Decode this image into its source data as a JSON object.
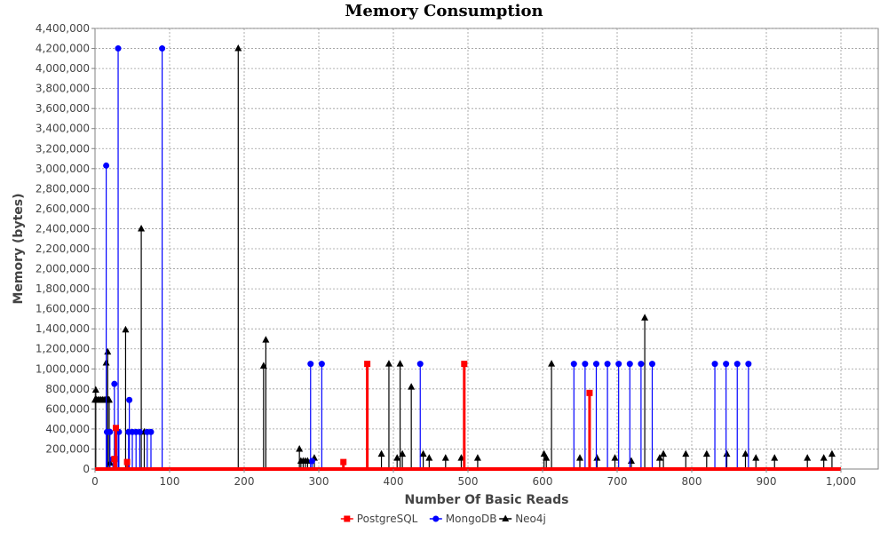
{
  "chart_data": {
    "type": "line",
    "title": "Memory Consumption",
    "xlabel": "Number Of Basic Reads",
    "ylabel": "Memory (bytes)",
    "xlim": [
      0,
      1050
    ],
    "ylim": [
      0,
      4400000
    ],
    "x_ticks": [
      0,
      100,
      200,
      300,
      400,
      500,
      600,
      700,
      800,
      900,
      1000
    ],
    "x_tick_labels": [
      "0",
      "100",
      "200",
      "300",
      "400",
      "500",
      "600",
      "700",
      "800",
      "900",
      "1,000"
    ],
    "y_ticks": [
      0,
      200000,
      400000,
      600000,
      800000,
      1000000,
      1200000,
      1400000,
      1600000,
      1800000,
      2000000,
      2200000,
      2400000,
      2600000,
      2800000,
      3000000,
      3200000,
      3400000,
      3600000,
      3800000,
      4000000,
      4200000,
      4400000
    ],
    "y_tick_labels": [
      "0",
      "200,000",
      "400,000",
      "600,000",
      "800,000",
      "1,000,000",
      "1,200,000",
      "1,400,000",
      "1,600,000",
      "1,800,000",
      "2,000,000",
      "2,200,000",
      "2,400,000",
      "2,600,000",
      "2,800,000",
      "3,000,000",
      "3,200,000",
      "3,400,000",
      "3,600,000",
      "3,800,000",
      "4,000,000",
      "4,200,000",
      "4,400,000"
    ],
    "grid": true,
    "legend_position": "bottom",
    "series": [
      {
        "name": "PostgreSQL",
        "color": "#ff0000",
        "marker": "square",
        "x_range": [
          0,
          1000
        ],
        "baseline": 0,
        "spikes": [
          {
            "x": 26,
            "y": 100000
          },
          {
            "x": 28,
            "y": 410000
          },
          {
            "x": 43,
            "y": 70000
          },
          {
            "x": 333,
            "y": 70000
          },
          {
            "x": 365,
            "y": 1050000
          },
          {
            "x": 495,
            "y": 1050000
          },
          {
            "x": 663,
            "y": 760000
          }
        ]
      },
      {
        "name": "MongoDB",
        "color": "#0000ff",
        "marker": "circle",
        "x_range": [
          0,
          1000
        ],
        "baseline": 0,
        "spikes": [
          {
            "x": 15,
            "y": 3030000
          },
          {
            "x": 16,
            "y": 370000
          },
          {
            "x": 20,
            "y": 370000
          },
          {
            "x": 24,
            "y": 100000
          },
          {
            "x": 26,
            "y": 850000
          },
          {
            "x": 31,
            "y": 4200000
          },
          {
            "x": 32,
            "y": 370000
          },
          {
            "x": 45,
            "y": 370000
          },
          {
            "x": 46,
            "y": 690000
          },
          {
            "x": 50,
            "y": 370000
          },
          {
            "x": 55,
            "y": 370000
          },
          {
            "x": 60,
            "y": 370000
          },
          {
            "x": 70,
            "y": 370000
          },
          {
            "x": 75,
            "y": 370000
          },
          {
            "x": 90,
            "y": 4200000
          },
          {
            "x": 289,
            "y": 1050000
          },
          {
            "x": 291,
            "y": 80000
          },
          {
            "x": 304,
            "y": 1050000
          },
          {
            "x": 436,
            "y": 1050000
          },
          {
            "x": 642,
            "y": 1050000
          },
          {
            "x": 657,
            "y": 1050000
          },
          {
            "x": 672,
            "y": 1050000
          },
          {
            "x": 687,
            "y": 1050000
          },
          {
            "x": 702,
            "y": 1050000
          },
          {
            "x": 717,
            "y": 1050000
          },
          {
            "x": 732,
            "y": 1050000
          },
          {
            "x": 747,
            "y": 1050000
          },
          {
            "x": 831,
            "y": 1050000
          },
          {
            "x": 846,
            "y": 1050000
          },
          {
            "x": 861,
            "y": 1050000
          },
          {
            "x": 876,
            "y": 1050000
          }
        ]
      },
      {
        "name": "Neo4j",
        "color": "#000000",
        "marker": "triangle",
        "x_range": [
          0,
          1000
        ],
        "baseline": 0,
        "plateau": {
          "x_from": 0,
          "x_to": 18,
          "y": 690000
        },
        "spikes": [
          {
            "x": 1,
            "y": 790000
          },
          {
            "x": 15,
            "y": 1060000
          },
          {
            "x": 17,
            "y": 1170000
          },
          {
            "x": 19,
            "y": 690000
          },
          {
            "x": 20,
            "y": 60000
          },
          {
            "x": 41,
            "y": 1390000
          },
          {
            "x": 62,
            "y": 2400000
          },
          {
            "x": 66,
            "y": 370000
          },
          {
            "x": 192,
            "y": 4200000
          },
          {
            "x": 226,
            "y": 1030000
          },
          {
            "x": 229,
            "y": 1290000
          },
          {
            "x": 274,
            "y": 200000
          },
          {
            "x": 276,
            "y": 80000
          },
          {
            "x": 279,
            "y": 80000
          },
          {
            "x": 282,
            "y": 80000
          },
          {
            "x": 285,
            "y": 80000
          },
          {
            "x": 294,
            "y": 110000
          },
          {
            "x": 384,
            "y": 150000
          },
          {
            "x": 394,
            "y": 1050000
          },
          {
            "x": 405,
            "y": 110000
          },
          {
            "x": 409,
            "y": 1050000
          },
          {
            "x": 412,
            "y": 150000
          },
          {
            "x": 424,
            "y": 820000
          },
          {
            "x": 440,
            "y": 150000
          },
          {
            "x": 448,
            "y": 110000
          },
          {
            "x": 470,
            "y": 110000
          },
          {
            "x": 491,
            "y": 110000
          },
          {
            "x": 513,
            "y": 110000
          },
          {
            "x": 602,
            "y": 150000
          },
          {
            "x": 605,
            "y": 110000
          },
          {
            "x": 612,
            "y": 1050000
          },
          {
            "x": 650,
            "y": 110000
          },
          {
            "x": 673,
            "y": 110000
          },
          {
            "x": 697,
            "y": 110000
          },
          {
            "x": 719,
            "y": 80000
          },
          {
            "x": 737,
            "y": 1510000
          },
          {
            "x": 757,
            "y": 110000
          },
          {
            "x": 762,
            "y": 150000
          },
          {
            "x": 792,
            "y": 150000
          },
          {
            "x": 820,
            "y": 150000
          },
          {
            "x": 847,
            "y": 150000
          },
          {
            "x": 886,
            "y": 110000
          },
          {
            "x": 872,
            "y": 150000
          },
          {
            "x": 911,
            "y": 110000
          },
          {
            "x": 955,
            "y": 110000
          },
          {
            "x": 977,
            "y": 110000
          },
          {
            "x": 988,
            "y": 150000
          }
        ]
      }
    ]
  }
}
